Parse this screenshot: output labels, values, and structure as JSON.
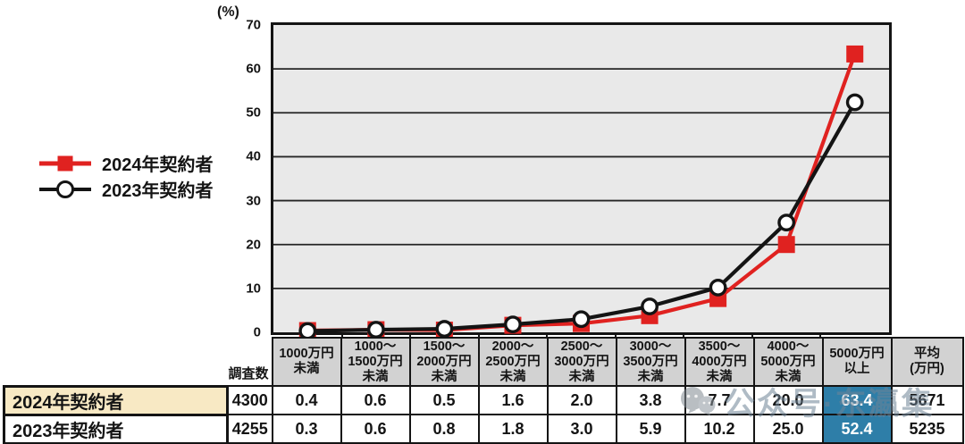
{
  "legend": {
    "items": [
      {
        "label": "2024年契約者",
        "marker": "square",
        "color": "#e02220"
      },
      {
        "label": "2023年契約者",
        "marker": "circle",
        "color": "#141414"
      }
    ]
  },
  "chart_data": {
    "type": "line",
    "title": "",
    "xlabel": "",
    "ylabel": "(%)",
    "ylim": [
      0,
      70
    ],
    "yticks": [
      0,
      10,
      20,
      30,
      40,
      50,
      60,
      70
    ],
    "grid": true,
    "legend_position": "left",
    "categories": [
      "1000万円未満",
      "1000〜1500万円未満",
      "1500〜2000万円未満",
      "2000〜2500万円未満",
      "2500〜3000万円未満",
      "3000〜3500万円未満",
      "3500〜4000万円未満",
      "4000〜5000万円未満",
      "5000万円以上"
    ],
    "category_lines": [
      [
        "1000万円",
        "未満"
      ],
      [
        "1000〜",
        "1500万円",
        "未満"
      ],
      [
        "1500〜",
        "2000万円",
        "未満"
      ],
      [
        "2000〜",
        "2500万円",
        "未満"
      ],
      [
        "2500〜",
        "3000万円",
        "未満"
      ],
      [
        "3000〜",
        "3500万円",
        "未満"
      ],
      [
        "3500〜",
        "4000万円",
        "未満"
      ],
      [
        "4000〜",
        "5000万円",
        "未満"
      ],
      [
        "5000万円",
        "以上"
      ]
    ],
    "series": [
      {
        "name": "2024年契約者",
        "marker": "square",
        "color": "#e02220",
        "values": [
          0.4,
          0.6,
          0.5,
          1.6,
          2.0,
          3.8,
          7.7,
          20.0,
          63.4
        ]
      },
      {
        "name": "2023年契約者",
        "marker": "circle",
        "color": "#141414",
        "values": [
          0.3,
          0.6,
          0.8,
          1.8,
          3.0,
          5.9,
          10.2,
          25.0,
          52.4
        ]
      }
    ]
  },
  "table": {
    "survey_label": "調査数",
    "avg_header_lines": [
      "平均",
      "(万円)"
    ],
    "highlight_column": 8,
    "highlight_color": "#2e7ea8",
    "rows": [
      {
        "label": "2024年契約者",
        "label_bg": "#f8e9c4",
        "survey_count": "4300",
        "values": [
          "0.4",
          "0.6",
          "0.5",
          "1.6",
          "2.0",
          "3.8",
          "7.7",
          "20.0",
          "63.4"
        ],
        "average": "5671"
      },
      {
        "label": "2023年契約者",
        "label_bg": "#ffffff",
        "survey_count": "4255",
        "values": [
          "0.3",
          "0.6",
          "0.8",
          "1.8",
          "3.0",
          "5.9",
          "10.2",
          "25.0",
          "52.4"
        ],
        "average": "5235"
      }
    ]
  },
  "watermark": {
    "text": "公众号·东瀛集",
    "icon": "wechat-icon"
  },
  "colors": {
    "plot_background": "#e9e9e9",
    "header_cell": "#d2d2d2",
    "label_highlight": "#f8e9c4",
    "value_highlight": "#2e7ea8",
    "series_red": "#e02220",
    "series_black": "#141414"
  }
}
